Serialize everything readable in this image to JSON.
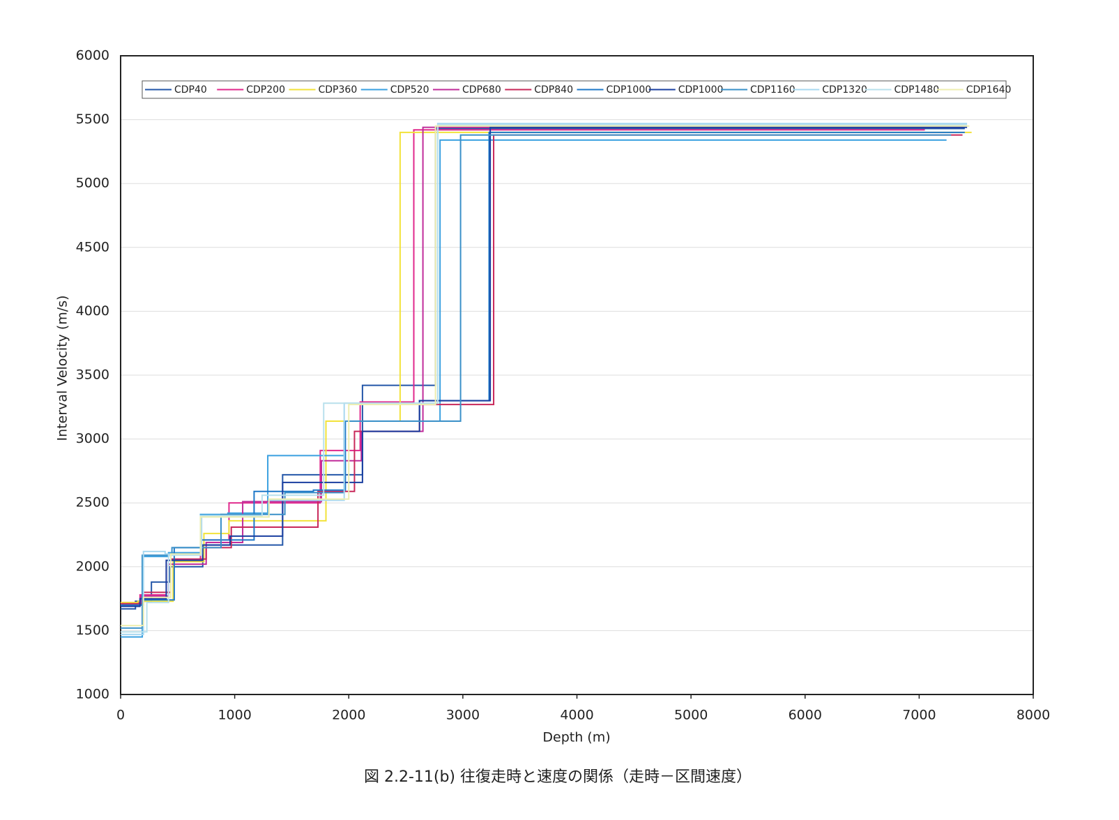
{
  "chart_data": {
    "type": "line",
    "xlabel": "Depth (m)",
    "ylabel": "Interval Velocity (m/s)",
    "caption": "図 2.2-11(b) 往復走時と速度の関係（走時－区間速度）",
    "xlim": [
      0,
      8000
    ],
    "xticks": [
      0,
      1000,
      2000,
      3000,
      4000,
      5000,
      6000,
      7000,
      8000
    ],
    "ylim": [
      1000,
      6000
    ],
    "yticks": [
      1000,
      1500,
      2000,
      2500,
      3000,
      3500,
      4000,
      4500,
      5000,
      5500,
      6000
    ],
    "grid": true,
    "legend": "top",
    "series": [
      {
        "name": "CDP40",
        "color": "#2356a8",
        "x": [
          0,
          130,
          130,
          270,
          270,
          430,
          430,
          720,
          720,
          1420,
          1420,
          2120,
          2120,
          2760,
          2760,
          7400
        ],
        "values": [
          1670,
          1670,
          1730,
          1730,
          1880,
          1880,
          2000,
          2000,
          2170,
          2170,
          2720,
          2720,
          3420,
          3420,
          5430,
          5430
        ]
      },
      {
        "name": "CDP200",
        "color": "#e0288c",
        "x": [
          0,
          170,
          170,
          400,
          400,
          700,
          700,
          950,
          950,
          1750,
          1750,
          2100,
          2100,
          2570,
          2570,
          7050
        ],
        "values": [
          1720,
          1720,
          1780,
          1780,
          2050,
          2050,
          2210,
          2210,
          2500,
          2500,
          2910,
          2910,
          3290,
          3290,
          5420,
          5420
        ]
      },
      {
        "name": "CDP360",
        "color": "#f2e23a",
        "x": [
          0,
          150,
          150,
          460,
          460,
          730,
          730,
          950,
          950,
          1800,
          1800,
          2450,
          2450,
          7460
        ],
        "values": [
          1720,
          1720,
          1730,
          1730,
          2040,
          2040,
          2260,
          2260,
          2360,
          2360,
          3140,
          3140,
          5400,
          5400
        ]
      },
      {
        "name": "CDP520",
        "color": "#3aa0e0",
        "x": [
          0,
          190,
          190,
          420,
          420,
          700,
          700,
          940,
          940,
          1290,
          1290,
          1960,
          1960,
          2800,
          2800,
          7240
        ],
        "values": [
          1450,
          1450,
          2080,
          2080,
          2110,
          2110,
          2410,
          2410,
          2420,
          2420,
          2870,
          2870,
          3140,
          3140,
          5340,
          5340
        ]
      },
      {
        "name": "CDP680",
        "color": "#c02c9a",
        "x": [
          0,
          180,
          180,
          420,
          420,
          750,
          750,
          1070,
          1070,
          1760,
          1760,
          2110,
          2110,
          2650,
          2650,
          7380
        ],
        "values": [
          1700,
          1700,
          1770,
          1770,
          2020,
          2020,
          2190,
          2190,
          2510,
          2510,
          2830,
          2830,
          3060,
          3060,
          5440,
          5440
        ]
      },
      {
        "name": "CDP840",
        "color": "#c8285a",
        "x": [
          0,
          190,
          190,
          440,
          440,
          750,
          750,
          970,
          970,
          1730,
          1730,
          2050,
          2050,
          2620,
          2620,
          3270,
          3270,
          7380
        ],
        "values": [
          1710,
          1710,
          1800,
          1800,
          2060,
          2060,
          2150,
          2150,
          2310,
          2310,
          2590,
          2590,
          3060,
          3060,
          3270,
          3270,
          5380,
          5380
        ]
      },
      {
        "name": "CDP1000",
        "color": "#1f78c8",
        "x": [
          0,
          200,
          200,
          470,
          470,
          700,
          700,
          1170,
          1170,
          1690,
          1690,
          1970,
          1970,
          2620,
          2620,
          3230,
          3230,
          7400
        ],
        "values": [
          1700,
          1700,
          1740,
          1740,
          2150,
          2150,
          2210,
          2210,
          2590,
          2590,
          2600,
          2600,
          3140,
          3140,
          3300,
          3300,
          5400,
          5400
        ]
      },
      {
        "name": "CDP1000",
        "color": "#1a3fa0",
        "x": [
          0,
          170,
          170,
          400,
          400,
          720,
          720,
          960,
          960,
          1420,
          1420,
          2120,
          2120,
          2620,
          2620,
          3240,
          3240,
          7420
        ],
        "values": [
          1690,
          1690,
          1750,
          1750,
          2050,
          2050,
          2170,
          2170,
          2240,
          2240,
          2660,
          2660,
          3060,
          3060,
          3300,
          3300,
          5440,
          5440
        ]
      },
      {
        "name": "CDP1160",
        "color": "#3a90c8",
        "x": [
          0,
          190,
          190,
          450,
          450,
          880,
          880,
          1440,
          1440,
          1960,
          1960,
          2980,
          2980,
          7280
        ],
        "values": [
          1520,
          1520,
          2090,
          2090,
          2150,
          2150,
          2410,
          2410,
          2580,
          2580,
          3140,
          3140,
          5380,
          5380
        ]
      },
      {
        "name": "CDP1320",
        "color": "#a8d8f0",
        "x": [
          0,
          200,
          200,
          390,
          390,
          710,
          710,
          1300,
          1300,
          1960,
          1960,
          2780,
          2780,
          7420
        ],
        "values": [
          1470,
          1470,
          2120,
          2120,
          2100,
          2100,
          2390,
          2390,
          2520,
          2520,
          3280,
          3280,
          5470,
          5470
        ]
      },
      {
        "name": "CDP1480",
        "color": "#b8e0ec",
        "x": [
          0,
          230,
          230,
          420,
          420,
          700,
          700,
          1240,
          1240,
          1780,
          1780,
          2780,
          2780,
          7420
        ],
        "values": [
          1490,
          1490,
          1720,
          1720,
          2090,
          2090,
          2400,
          2400,
          2560,
          2560,
          3280,
          3280,
          5460,
          5460
        ]
      },
      {
        "name": "CDP1640",
        "color": "#eeeeb0",
        "x": [
          0,
          200,
          200,
          440,
          440,
          700,
          700,
          1300,
          1300,
          2000,
          2000,
          2760,
          2760,
          7440
        ],
        "values": [
          1540,
          1540,
          1760,
          1760,
          2100,
          2100,
          2390,
          2390,
          2530,
          2530,
          3270,
          3270,
          5450,
          5450
        ]
      }
    ]
  }
}
